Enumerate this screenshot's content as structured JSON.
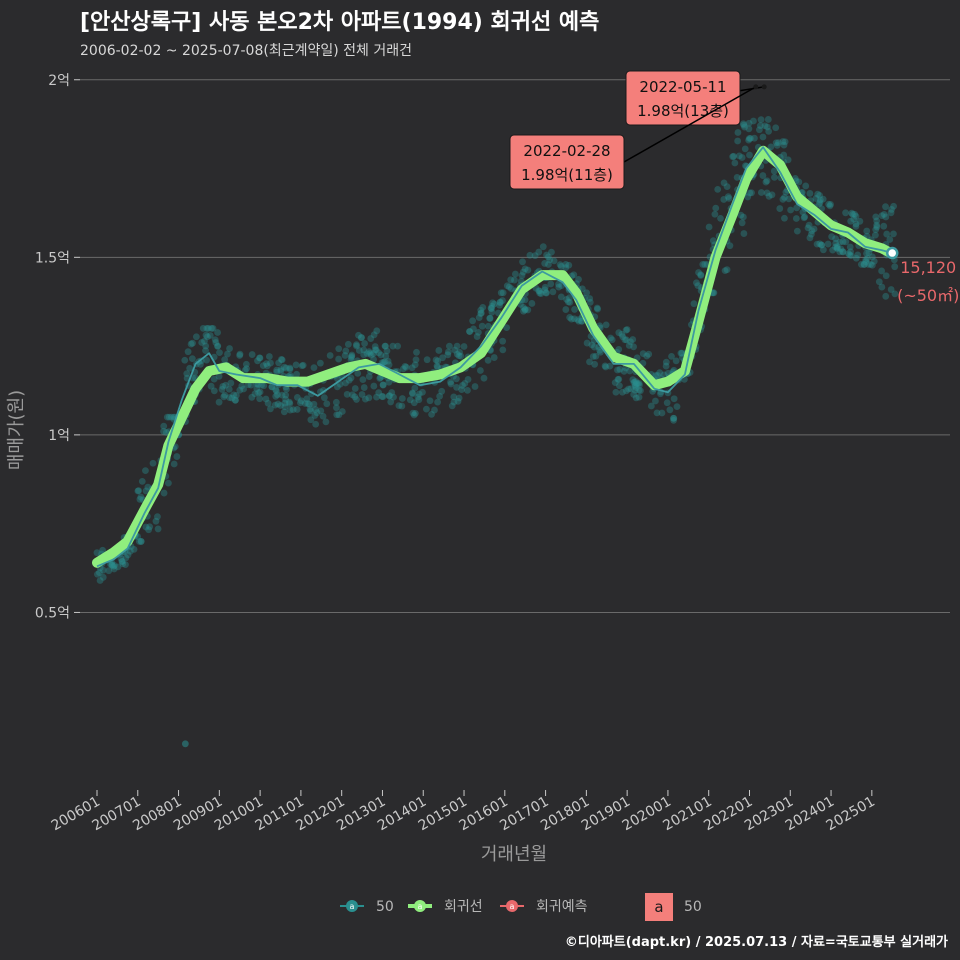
{
  "header": {
    "title": "[안산상록구] 사동 본오2차 아파트(1994) 회귀선 예측",
    "subtitle": "2006-02-02 ~ 2025-07-08(최근계약일) 전체 거래건"
  },
  "footer": "©디아파트(dapt.kr) / 2025.07.13 / 자료=국토교통부 실거래가",
  "colors": {
    "background": "#2b2b2d",
    "scatter": "#2a8f8f",
    "trend": "#3d9aa0",
    "regression": "#90ee7e",
    "forecast": "#e8686b",
    "callout": "#f47f7b"
  },
  "chart_data": {
    "type": "scatter",
    "xlabel": "거래년월",
    "ylabel": "매매가(원)",
    "x_range": [
      "2005-08",
      "2026-12"
    ],
    "ylim": [
      0,
      20500
    ],
    "y_unit": "만원",
    "y_ticks": [
      {
        "value": 5000,
        "label": "0.5억"
      },
      {
        "value": 10000,
        "label": "1억"
      },
      {
        "value": 15000,
        "label": "1.5억"
      },
      {
        "value": 20000,
        "label": "2억"
      }
    ],
    "x_ticks": [
      "200601",
      "200701",
      "200801",
      "200901",
      "201001",
      "201101",
      "201201",
      "201301",
      "201401",
      "201501",
      "201601",
      "201701",
      "201801",
      "201901",
      "202001",
      "202101",
      "202201",
      "202301",
      "202401",
      "202501"
    ],
    "grid": true,
    "legend": {
      "position": "bottom",
      "items": [
        {
          "name": "50",
          "color": "#2a8f8f"
        },
        {
          "name": "회귀선",
          "color": "#90ee7e"
        },
        {
          "name": "회귀예측",
          "color": "#e8686b"
        }
      ],
      "label_key": {
        "glyph": "a",
        "text": "50",
        "color": "#f47f7b"
      }
    },
    "series": [
      {
        "name": "회귀선",
        "points": [
          [
            "2006-01",
            6400
          ],
          [
            "2006-06",
            6700
          ],
          [
            "2006-10",
            7000
          ],
          [
            "2007-03",
            7900
          ],
          [
            "2007-07",
            8600
          ],
          [
            "2007-10",
            9700
          ],
          [
            "2008-02",
            10500
          ],
          [
            "2008-06",
            11300
          ],
          [
            "2008-10",
            11800
          ],
          [
            "2009-03",
            11900
          ],
          [
            "2009-08",
            11600
          ],
          [
            "2010-03",
            11600
          ],
          [
            "2010-09",
            11500
          ],
          [
            "2011-03",
            11500
          ],
          [
            "2011-09",
            11700
          ],
          [
            "2012-03",
            11900
          ],
          [
            "2012-08",
            12000
          ],
          [
            "2013-01",
            11800
          ],
          [
            "2013-06",
            11600
          ],
          [
            "2013-12",
            11600
          ],
          [
            "2014-06",
            11700
          ],
          [
            "2014-12",
            11900
          ],
          [
            "2015-06",
            12300
          ],
          [
            "2015-12",
            13200
          ],
          [
            "2016-06",
            14100
          ],
          [
            "2016-12",
            14500
          ],
          [
            "2017-06",
            14500
          ],
          [
            "2017-10",
            14000
          ],
          [
            "2018-03",
            13000
          ],
          [
            "2018-09",
            12200
          ],
          [
            "2019-03",
            12000
          ],
          [
            "2019-09",
            11400
          ],
          [
            "2020-01",
            11500
          ],
          [
            "2020-06",
            11800
          ],
          [
            "2020-10",
            13200
          ],
          [
            "2021-03",
            15000
          ],
          [
            "2021-08",
            16200
          ],
          [
            "2021-12",
            17200
          ],
          [
            "2022-05",
            18000
          ],
          [
            "2022-10",
            17600
          ],
          [
            "2023-03",
            16700
          ],
          [
            "2023-08",
            16300
          ],
          [
            "2024-01",
            15900
          ],
          [
            "2024-06",
            15700
          ],
          [
            "2024-11",
            15400
          ],
          [
            "2025-04",
            15250
          ],
          [
            "2025-07",
            15100
          ]
        ]
      },
      {
        "name": "50",
        "points": [
          [
            "2006-01",
            6300
          ],
          [
            "2006-06",
            6500
          ],
          [
            "2006-10",
            6800
          ],
          [
            "2007-03",
            7800
          ],
          [
            "2007-07",
            8500
          ],
          [
            "2007-10",
            9800
          ],
          [
            "2008-02",
            11000
          ],
          [
            "2008-06",
            12000
          ],
          [
            "2008-10",
            12300
          ],
          [
            "2009-01",
            11800
          ],
          [
            "2009-06",
            11700
          ],
          [
            "2010-01",
            11600
          ],
          [
            "2010-06",
            11400
          ],
          [
            "2010-12",
            11400
          ],
          [
            "2011-06",
            11100
          ],
          [
            "2011-12",
            11500
          ],
          [
            "2012-06",
            11900
          ],
          [
            "2012-12",
            12000
          ],
          [
            "2013-06",
            11700
          ],
          [
            "2013-12",
            11400
          ],
          [
            "2014-06",
            11500
          ],
          [
            "2014-12",
            11900
          ],
          [
            "2015-06",
            12500
          ],
          [
            "2015-12",
            13300
          ],
          [
            "2016-06",
            14200
          ],
          [
            "2016-12",
            14600
          ],
          [
            "2017-06",
            14300
          ],
          [
            "2017-10",
            13800
          ],
          [
            "2018-03",
            12800
          ],
          [
            "2018-09",
            12000
          ],
          [
            "2019-03",
            12000
          ],
          [
            "2019-09",
            11300
          ],
          [
            "2020-01",
            11200
          ],
          [
            "2020-06",
            11700
          ],
          [
            "2020-10",
            13500
          ],
          [
            "2021-03",
            15200
          ],
          [
            "2021-08",
            16500
          ],
          [
            "2021-12",
            17500
          ],
          [
            "2022-05",
            18100
          ],
          [
            "2022-10",
            17400
          ],
          [
            "2023-03",
            16500
          ],
          [
            "2023-08",
            16200
          ],
          [
            "2024-01",
            15800
          ],
          [
            "2024-06",
            15700
          ],
          [
            "2024-11",
            15300
          ],
          [
            "2025-04",
            15200
          ],
          [
            "2025-07",
            15120
          ]
        ]
      }
    ],
    "annotations": [
      {
        "date": "2022-05-11",
        "label": "1.98억(13층)",
        "value": 19800
      },
      {
        "date": "2022-02-28",
        "label": "1.98억(11층)",
        "value": 19800
      }
    ],
    "end_point": {
      "date": "2025-07",
      "value": 15120,
      "label": "15,120",
      "area_label": "(~50㎡)"
    },
    "scatter_bands": [
      {
        "from": "2006-01",
        "to": "2006-12",
        "min": 5900,
        "max": 7200
      },
      {
        "from": "2007-01",
        "to": "2007-12",
        "min": 7000,
        "max": 10500
      },
      {
        "from": "2008-01",
        "to": "2008-12",
        "min": 10000,
        "max": 13000
      },
      {
        "from": "2009-01",
        "to": "2010-12",
        "min": 10500,
        "max": 12700
      },
      {
        "from": "2011-01",
        "to": "2012-12",
        "min": 10300,
        "max": 13000
      },
      {
        "from": "2013-01",
        "to": "2014-12",
        "min": 9800,
        "max": 12500
      },
      {
        "from": "2015-01",
        "to": "2015-12",
        "min": 11000,
        "max": 14000
      },
      {
        "from": "2016-01",
        "to": "2016-12",
        "min": 13000,
        "max": 15300
      },
      {
        "from": "2017-01",
        "to": "2017-12",
        "min": 13200,
        "max": 15300
      },
      {
        "from": "2018-01",
        "to": "2018-12",
        "min": 11200,
        "max": 14000
      },
      {
        "from": "2019-01",
        "to": "2019-12",
        "min": 10200,
        "max": 12800
      },
      {
        "from": "2020-01",
        "to": "2020-06",
        "min": 9500,
        "max": 12300
      },
      {
        "from": "2020-07",
        "to": "2020-12",
        "min": 11500,
        "max": 14800
      },
      {
        "from": "2021-01",
        "to": "2021-12",
        "min": 14000,
        "max": 18800
      },
      {
        "from": "2022-01",
        "to": "2022-12",
        "min": 16000,
        "max": 19500
      },
      {
        "from": "2023-01",
        "to": "2023-12",
        "min": 15200,
        "max": 17500
      },
      {
        "from": "2024-01",
        "to": "2024-12",
        "min": 14800,
        "max": 16800
      },
      {
        "from": "2025-01",
        "to": "2025-07",
        "min": 12500,
        "max": 16500
      }
    ],
    "outliers": [
      {
        "date": "2008-03",
        "value": 1300
      }
    ]
  }
}
